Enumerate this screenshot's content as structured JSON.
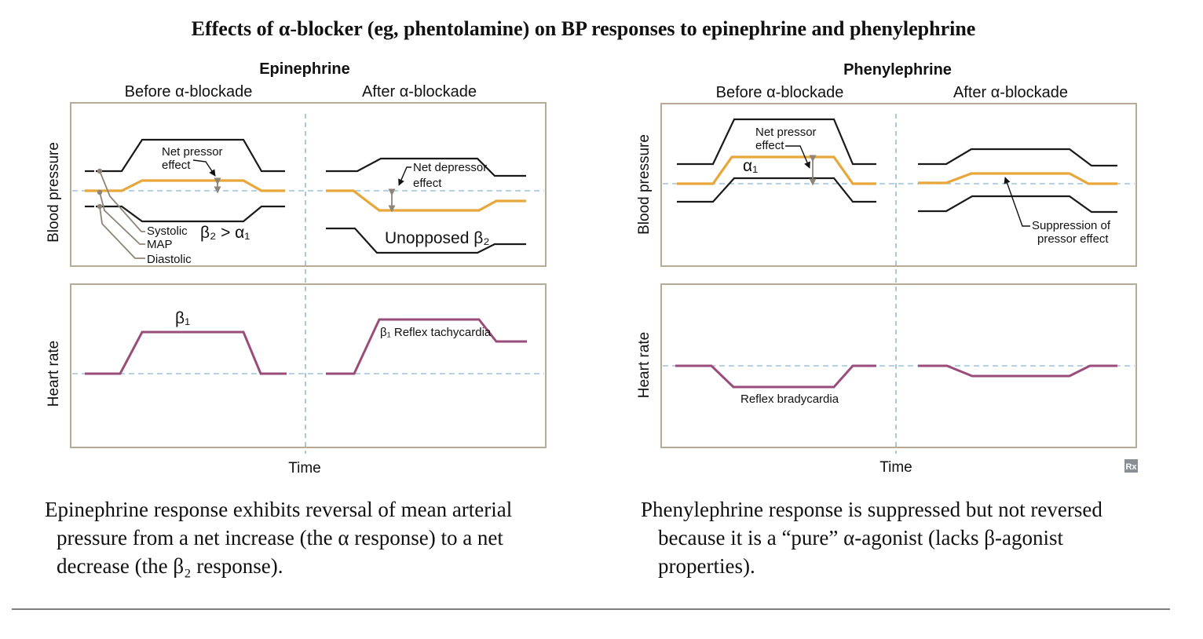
{
  "title": "Effects of α-blocker (eg, phentolamine) on BP responses to epinephrine and phenylephrine",
  "left_panel": {
    "header": "Epinephrine",
    "before_label": "Before α-blockade",
    "after_label": "After α-blockade",
    "bp_axis_label": "Blood pressure",
    "hr_axis_label": "Heart rate",
    "time_label": "Time",
    "net_pressor_line1": "Net pressor",
    "net_pressor_line2": "effect",
    "net_depressor_line1": "Net depressor",
    "net_depressor_line2": "effect",
    "legend_systolic": "Systolic",
    "legend_map": "MAP",
    "legend_diastolic": "Diastolic",
    "beta2_gt_alpha1": "β₂ > α₁",
    "unopposed_beta2": "Unopposed β₂",
    "beta1": "β₁",
    "reflex_tachycardia": "β₁ Reflex tachycardia"
  },
  "right_panel": {
    "header": "Phenylephrine",
    "before_label": "Before α-blockade",
    "after_label": "After α-blockade",
    "bp_axis_label": "Blood pressure",
    "hr_axis_label": "Heart rate",
    "time_label": "Time",
    "net_pressor_line1": "Net pressor",
    "net_pressor_line2": "effect",
    "alpha1": "α₁",
    "suppression_line1": "Suppression of",
    "suppression_line2": "pressor effect",
    "reflex_bradycardia": "Reflex bradycardia",
    "logo_text": "Rx"
  },
  "captions": {
    "left_line1": "Epinephrine response exhibits reversal of mean arterial",
    "left_line2": "pressure from a net increase (the α response) to a net",
    "left_line3": "decrease (the β₂ response).",
    "right_line1": "Phenylephrine response is suppressed but not reversed",
    "right_line2": "because it is a “pure” α-agonist (lacks β-agonist",
    "right_line3": "properties)."
  },
  "colors": {
    "frame": "#b7ab95",
    "baseline": "#8fb6cf",
    "bp_black": "#1a1a1a",
    "map_orange": "#e7a73b",
    "hr_purple": "#9a4d7a"
  }
}
